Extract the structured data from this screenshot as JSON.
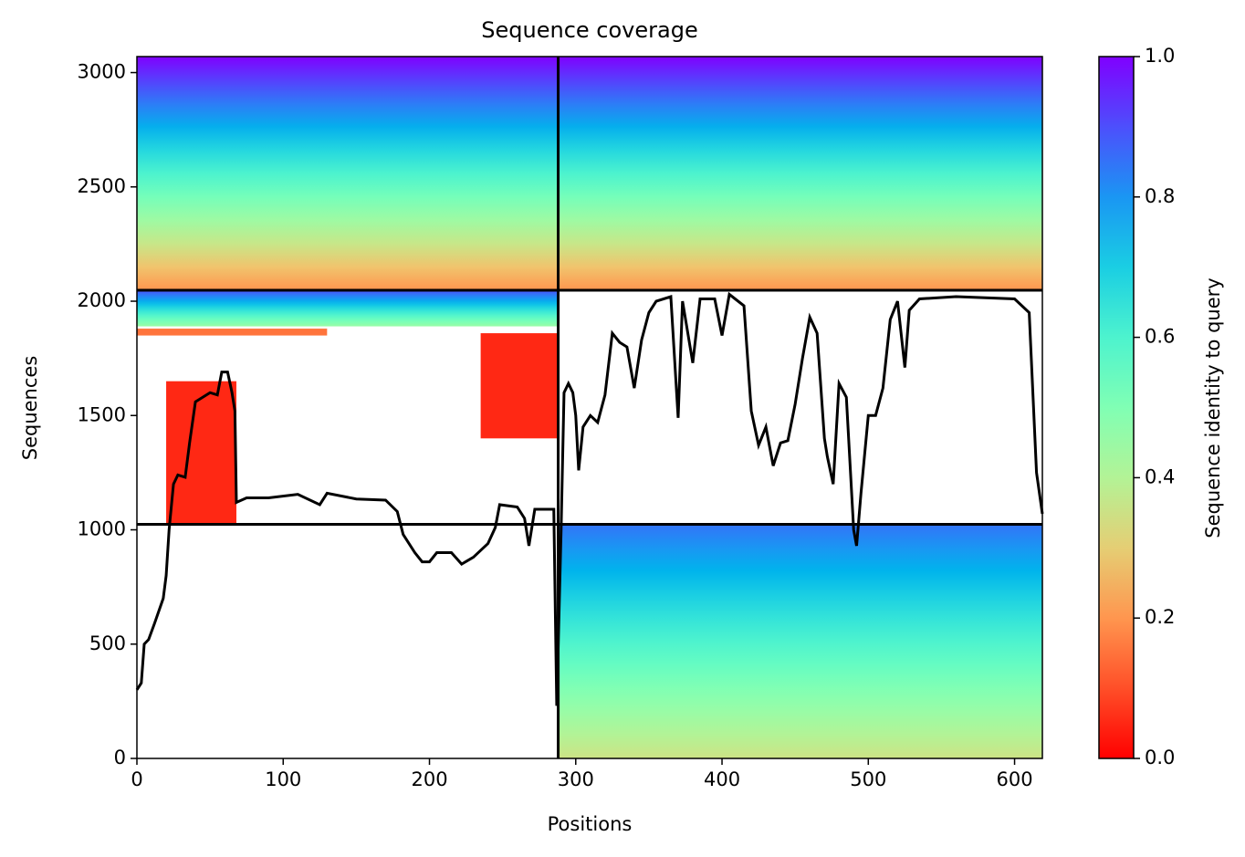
{
  "chart_data": {
    "type": "coverage",
    "title": "Sequence coverage",
    "xlabel": "Positions",
    "ylabel": "Sequences",
    "xlim": [
      0,
      619
    ],
    "ylim": [
      0,
      3070
    ],
    "xticks": [
      0,
      100,
      200,
      300,
      400,
      500,
      600
    ],
    "yticks": [
      0,
      500,
      1000,
      1500,
      2000,
      2500,
      3000
    ],
    "regions": [
      {
        "x": [
          0,
          288
        ],
        "y": [
          2048,
          3070
        ],
        "identity": [
          0.2,
          1.0
        ]
      },
      {
        "x": [
          288,
          619
        ],
        "y": [
          2048,
          3070
        ],
        "identity": [
          0.2,
          1.0
        ]
      },
      {
        "x": [
          0,
          288
        ],
        "y": [
          1890,
          2048
        ],
        "identity": [
          0.45,
          0.9
        ]
      },
      {
        "x": [
          0,
          130
        ],
        "y": [
          1850,
          1880
        ],
        "identity": [
          0.15,
          0.15
        ]
      },
      {
        "x": [
          20,
          68
        ],
        "y": [
          1024,
          1650
        ],
        "identity": [
          0.05,
          0.05
        ]
      },
      {
        "x": [
          235,
          288
        ],
        "y": [
          1400,
          1860
        ],
        "identity": [
          0.05,
          0.05
        ]
      },
      {
        "x": [
          288,
          619
        ],
        "y": [
          0,
          1024
        ],
        "identity": [
          0.35,
          0.85
        ]
      }
    ],
    "dividers": {
      "x": [
        288
      ],
      "y": [
        1024,
        2048
      ]
    },
    "coverage": {
      "color": "#000000",
      "x": [
        0,
        3,
        5,
        8,
        12,
        18,
        20,
        22,
        25,
        28,
        33,
        36,
        40,
        45,
        50,
        55,
        58,
        62,
        65,
        67,
        68,
        75,
        90,
        110,
        125,
        130,
        150,
        170,
        178,
        182,
        190,
        195,
        200,
        205,
        215,
        222,
        230,
        240,
        245,
        248,
        260,
        265,
        268,
        272,
        285,
        287,
        290,
        292,
        295,
        298,
        300,
        302,
        305,
        310,
        315,
        320,
        325,
        330,
        335,
        340,
        345,
        350,
        355,
        365,
        370,
        373,
        380,
        385,
        395,
        400,
        405,
        415,
        420,
        425,
        430,
        435,
        440,
        445,
        450,
        455,
        460,
        465,
        470,
        472,
        476,
        480,
        485,
        490,
        492,
        495,
        500,
        505,
        510,
        515,
        520,
        525,
        528,
        535,
        560,
        600,
        610,
        615,
        619
      ],
      "values": [
        300,
        330,
        500,
        520,
        590,
        700,
        800,
        1000,
        1200,
        1240,
        1230,
        1380,
        1560,
        1580,
        1600,
        1590,
        1690,
        1690,
        1600,
        1520,
        1120,
        1140,
        1140,
        1155,
        1110,
        1160,
        1135,
        1130,
        1080,
        980,
        900,
        860,
        860,
        900,
        900,
        850,
        880,
        940,
        1010,
        1110,
        1100,
        1050,
        930,
        1090,
        1090,
        230,
        1000,
        1600,
        1640,
        1600,
        1500,
        1260,
        1450,
        1500,
        1470,
        1590,
        1860,
        1820,
        1800,
        1620,
        1830,
        1950,
        2000,
        2020,
        1490,
        2000,
        1730,
        2010,
        2010,
        1850,
        2030,
        1980,
        1520,
        1370,
        1450,
        1280,
        1380,
        1390,
        1550,
        1750,
        1930,
        1860,
        1400,
        1320,
        1200,
        1640,
        1580,
        1000,
        930,
        1160,
        1500,
        1500,
        1620,
        1920,
        2000,
        1710,
        1960,
        2010,
        2020,
        2010,
        1950,
        1250,
        1070
      ]
    },
    "colorbar": {
      "label": "Sequence identity to query",
      "lim": [
        0,
        1
      ],
      "ticks": [
        {
          "value": 0,
          "label": "0.0"
        },
        {
          "value": 0.2,
          "label": "0.2"
        },
        {
          "value": 0.4,
          "label": "0.4"
        },
        {
          "value": 0.6,
          "label": "0.6"
        },
        {
          "value": 0.8,
          "label": "0.8"
        },
        {
          "value": 1,
          "label": "1.0"
        }
      ]
    }
  }
}
